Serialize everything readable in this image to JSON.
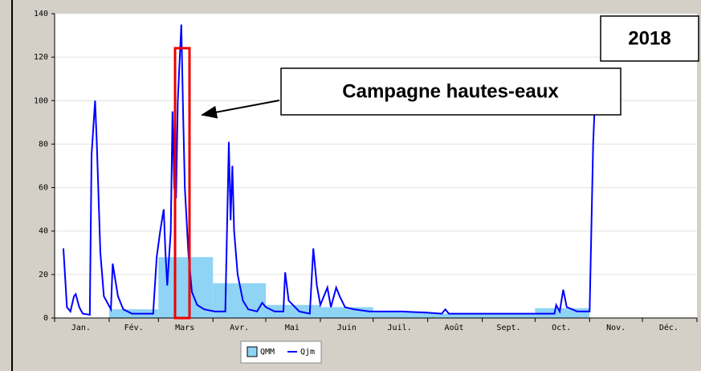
{
  "chart_data": {
    "type": "combo",
    "annotations": [
      "2018",
      "Campagne hautes-eaux"
    ],
    "xlim": [
      0,
      365
    ],
    "xticks": [
      {
        "value": 15,
        "label": "Jan."
      },
      {
        "value": 45,
        "label": "Fév."
      },
      {
        "value": 74,
        "label": "Mars"
      },
      {
        "value": 105,
        "label": "Avr."
      },
      {
        "value": 135,
        "label": "Mai"
      },
      {
        "value": 166,
        "label": "Juin"
      },
      {
        "value": 196,
        "label": "Juil."
      },
      {
        "value": 227,
        "label": "Août"
      },
      {
        "value": 258,
        "label": "Sept."
      },
      {
        "value": 288,
        "label": "Oct."
      },
      {
        "value": 319,
        "label": "Nov."
      },
      {
        "value": 349,
        "label": "Déc."
      }
    ],
    "ylim": [
      0,
      140
    ],
    "yticks": [
      0,
      20,
      40,
      60,
      80,
      100,
      120,
      140
    ],
    "grid": true,
    "series": [
      {
        "name": "QMM",
        "type": "bar",
        "color": "#8fd3f5",
        "bins": [
          0,
          31,
          59,
          90,
          120,
          151,
          181,
          212,
          243,
          273,
          304,
          334,
          365
        ],
        "values": [
          null,
          4,
          28,
          16,
          6,
          5,
          3,
          2,
          2,
          4.5,
          null,
          null
        ]
      },
      {
        "name": "Qjm",
        "type": "line",
        "color": "#0000ff",
        "x": [
          5,
          7,
          9,
          11,
          12,
          14,
          16,
          20,
          21,
          23,
          24,
          26,
          28,
          32,
          33,
          36,
          39,
          44,
          56,
          58,
          60,
          62,
          63,
          64,
          66,
          67,
          68,
          69,
          70,
          72,
          73,
          74,
          76,
          78,
          81,
          85,
          91,
          97,
          99,
          100,
          101,
          102,
          104,
          107,
          110,
          115,
          118,
          120,
          125,
          130,
          131,
          133,
          139,
          145,
          147,
          149,
          151,
          155,
          157,
          160,
          162,
          165,
          170,
          179,
          197,
          211,
          220,
          222,
          224,
          243,
          265,
          284,
          285,
          287,
          289,
          291,
          297,
          304,
          306,
          307
        ],
        "values": [
          32,
          5,
          3,
          10,
          11,
          5,
          2,
          1.5,
          75,
          100,
          80,
          30,
          10,
          4,
          25,
          10,
          4,
          2,
          2,
          28,
          40,
          50,
          30,
          15,
          40,
          95,
          60,
          55,
          100,
          135,
          95,
          60,
          30,
          12,
          6,
          4,
          3,
          3,
          81,
          45,
          70,
          40,
          20,
          8,
          4,
          3,
          7,
          5,
          3,
          3,
          21,
          8,
          3,
          2,
          32,
          15,
          6,
          14,
          5,
          14,
          10,
          5,
          4,
          3,
          3,
          2.5,
          2,
          4,
          2,
          2,
          2,
          2,
          6,
          3,
          13,
          5,
          3,
          3,
          80,
          100
        ]
      }
    ]
  }
}
